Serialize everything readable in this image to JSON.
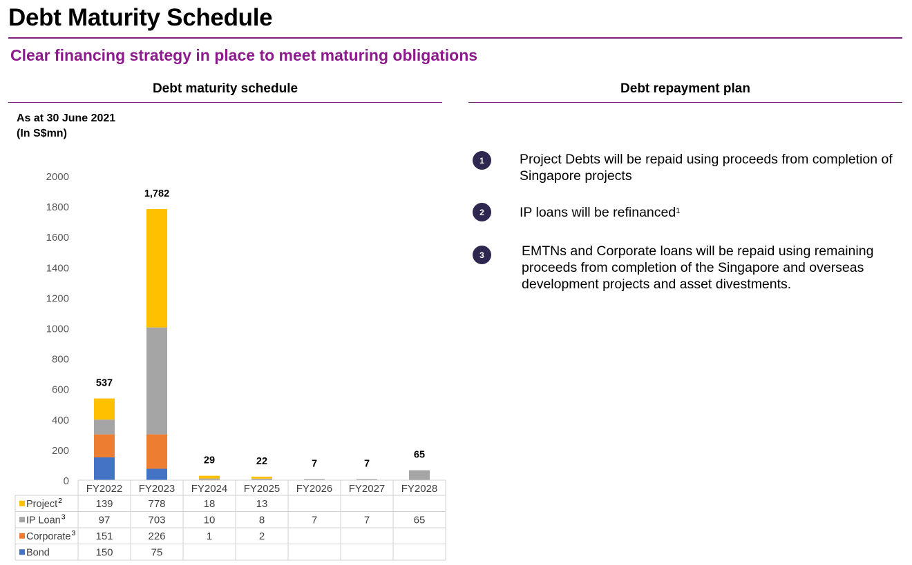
{
  "header": {
    "title": "Debt Maturity Schedule",
    "subtitle": "Clear financing strategy in place to meet maturing obligations"
  },
  "left_panel": {
    "heading": "Debt maturity schedule",
    "as_of": "As at 30 June 2021",
    "unit": "(In S$mn)"
  },
  "right_panel": {
    "heading": "Debt repayment plan",
    "steps": [
      {
        "number": "1",
        "text": "Project Debts will be repaid using proceeds from completion of Singapore projects",
        "footnote": ""
      },
      {
        "number": "2",
        "text": "IP loans will be refinanced",
        "footnote": "1"
      },
      {
        "number": "3",
        "text": "EMTNs and Corporate loans will be repaid using remaining proceeds from completion of the Singapore and overseas development projects and asset divestments.",
        "footnote": ""
      }
    ]
  },
  "colors": {
    "Project": "#ffc000",
    "IP Loan": "#a5a5a5",
    "Corporate": "#ed7d31",
    "Bond": "#4472c4",
    "accent": "#8b1a8b",
    "rule": "#7b1f7b",
    "badge": "#2e2750"
  },
  "chart_data": {
    "type": "bar",
    "stacked": true,
    "categories": [
      "FY2022",
      "FY2023",
      "FY2024",
      "FY2025",
      "FY2026",
      "FY2027",
      "FY2028"
    ],
    "series": [
      {
        "name": "Bond",
        "footnote": "",
        "values": [
          150,
          75,
          null,
          null,
          null,
          null,
          null
        ]
      },
      {
        "name": "Corporate",
        "footnote": "3",
        "values": [
          151,
          226,
          1,
          2,
          null,
          null,
          null
        ]
      },
      {
        "name": "IP Loan",
        "footnote": "3",
        "values": [
          97,
          703,
          10,
          8,
          7,
          7,
          65
        ]
      },
      {
        "name": "Project",
        "footnote": "2",
        "values": [
          139,
          778,
          18,
          13,
          null,
          null,
          null
        ]
      }
    ],
    "totals": [
      "537",
      "1,782",
      "29",
      "22",
      "7",
      "7",
      "65"
    ],
    "ylim": [
      0,
      2000
    ],
    "yticks": [
      0,
      200,
      400,
      600,
      800,
      1000,
      1200,
      1400,
      1600,
      1800,
      2000
    ],
    "grid": false,
    "legend": "data table below chart",
    "table_row_order": [
      "Project",
      "IP Loan",
      "Corporate",
      "Bond"
    ]
  }
}
